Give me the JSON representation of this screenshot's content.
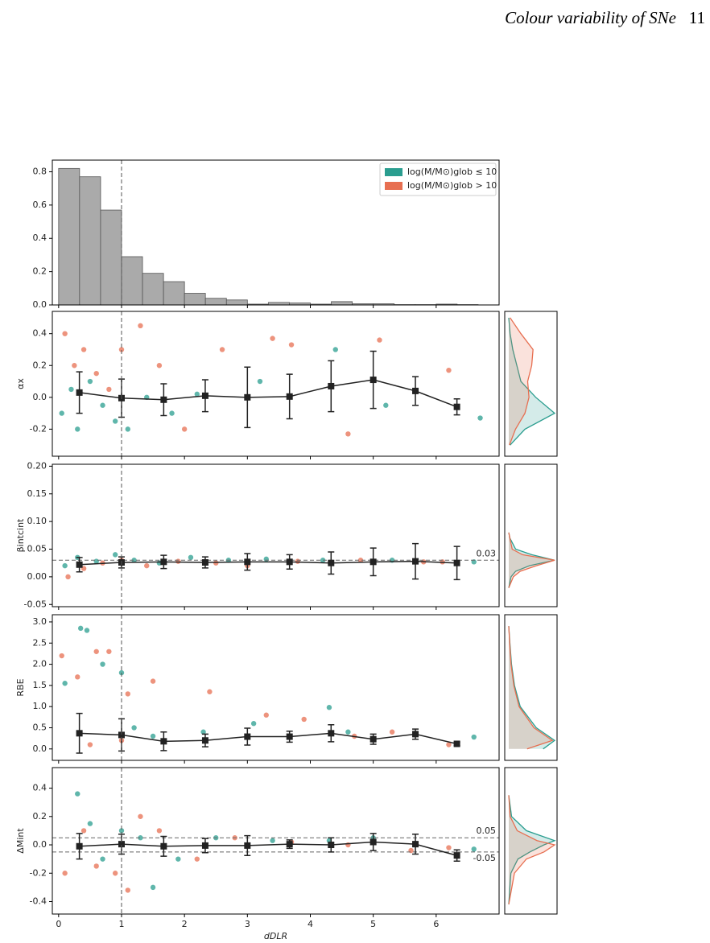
{
  "header": {
    "title": "Colour variability of SNe",
    "page": "11"
  },
  "chart_data": [
    {
      "type": "histogram",
      "xlim": [
        -0.1,
        7.0
      ],
      "ylim": [
        0,
        0.87
      ],
      "yticks": [
        {
          "value": 0,
          "label": "0.0"
        },
        0.2,
        0.4,
        0.6,
        0.8
      ],
      "bins": [
        0,
        0.333,
        0.667,
        1,
        1.333,
        1.667,
        2,
        2.333,
        2.667,
        3,
        3.333,
        3.667,
        4,
        4.333,
        4.667,
        5,
        5.333,
        5.667,
        6,
        6.333,
        6.667
      ],
      "values": [
        0.82,
        0.77,
        0.57,
        0.29,
        0.19,
        0.14,
        0.07,
        0.04,
        0.03,
        0.005,
        0.015,
        0.012,
        0.005,
        0.02,
        0.007,
        0.007,
        0.002,
        0.002,
        0.005,
        0.002
      ],
      "color": "#aaaaaa",
      "vline": 1,
      "legend": [
        {
          "label": "log(M/M⊙)glob ≤ 10",
          "color": "#2a9d8f"
        },
        {
          "label": "log(M/M⊙)glob > 10",
          "color": "#e76f51"
        }
      ]
    },
    {
      "type": "scatter",
      "ylabel": "αx",
      "xlim": [
        -0.1,
        7.0
      ],
      "ylim": [
        -0.37,
        0.54
      ],
      "yticks": [
        -0.2,
        {
          "value": 0,
          "label": "0.0"
        },
        0.2,
        0.4
      ],
      "vline": 1,
      "points": [
        {
          "color": "#2a9d8f",
          "x": [
            0.05,
            0.2,
            0.3,
            0.5,
            0.7,
            0.9,
            1.1,
            1.4,
            1.8,
            2.2,
            3.2,
            4.4,
            5.2,
            6.7
          ],
          "values": [
            -0.1,
            0.05,
            -0.2,
            0.1,
            -0.05,
            -0.15,
            -0.2,
            0.0,
            -0.1,
            0.02,
            0.1,
            0.3,
            -0.05,
            -0.13
          ]
        },
        {
          "color": "#e76f51",
          "x": [
            0.1,
            0.25,
            0.4,
            0.6,
            0.8,
            1.0,
            1.3,
            1.6,
            2.0,
            2.6,
            3.4,
            3.7,
            4.6,
            5.1,
            6.2
          ],
          "values": [
            0.4,
            0.2,
            0.3,
            0.15,
            0.05,
            0.3,
            0.45,
            0.2,
            -0.2,
            0.3,
            0.37,
            0.33,
            -0.23,
            0.36,
            0.17
          ]
        }
      ],
      "mean": {
        "color": "#222222",
        "x": [
          0.33,
          1,
          1.67,
          2.33,
          3,
          3.67,
          4.33,
          5,
          5.67,
          6.33
        ],
        "values": [
          0.03,
          -0.005,
          -0.015,
          0.01,
          0.0,
          0.005,
          0.07,
          0.11,
          0.04,
          -0.06
        ],
        "errors": [
          0.13,
          0.12,
          0.1,
          0.1,
          0.19,
          0.14,
          0.16,
          0.18,
          0.09,
          0.05
        ]
      },
      "kde": [
        {
          "color": "#2a9d8f",
          "y": [
            -0.3,
            -0.2,
            -0.1,
            0,
            0.1,
            0.2,
            0.3,
            0.4,
            0.5
          ],
          "density": [
            0.1,
            1.2,
            3.4,
            2.0,
            0.9,
            0.6,
            0.3,
            0.1,
            0.0
          ]
        },
        {
          "color": "#e76f51",
          "y": [
            -0.3,
            -0.2,
            -0.1,
            0,
            0.1,
            0.2,
            0.3,
            0.4,
            0.5
          ],
          "density": [
            0.05,
            0.5,
            1.2,
            1.5,
            1.4,
            1.7,
            1.8,
            0.9,
            0.1
          ]
        }
      ]
    },
    {
      "type": "scatter",
      "ylabel": "βintcint",
      "xlim": [
        -0.1,
        7.0
      ],
      "ylim": [
        -0.054,
        0.2035
      ],
      "yticks": [
        -0.05,
        {
          "value": 0,
          "label": "0.00"
        },
        0.05,
        {
          "value": 0.1,
          "label": "0.10"
        },
        0.15,
        {
          "value": 0.2,
          "label": "0.20"
        }
      ],
      "vline": 1,
      "hlines": [
        {
          "value": 0.03,
          "label": "0.03"
        }
      ],
      "points": [
        {
          "color": "#2a9d8f",
          "x": [
            0.1,
            0.3,
            0.6,
            0.9,
            1.2,
            1.6,
            2.1,
            2.7,
            3.3,
            4.2,
            5.3,
            6.6
          ],
          "values": [
            0.02,
            0.035,
            0.028,
            0.04,
            0.03,
            0.025,
            0.035,
            0.03,
            0.032,
            0.03,
            0.03,
            0.027
          ]
        },
        {
          "color": "#e76f51",
          "x": [
            0.15,
            0.4,
            0.7,
            1.0,
            1.4,
            1.9,
            2.5,
            3.0,
            3.8,
            4.8,
            5.8,
            6.1
          ],
          "values": [
            0.0,
            0.015,
            0.025,
            0.03,
            0.02,
            0.028,
            0.025,
            0.02,
            0.028,
            0.03,
            0.027,
            0.027
          ]
        }
      ],
      "mean": {
        "color": "#222222",
        "x": [
          0.33,
          1,
          1.67,
          2.33,
          3,
          3.67,
          4.33,
          5,
          5.67,
          6.33
        ],
        "values": [
          0.022,
          0.026,
          0.027,
          0.026,
          0.027,
          0.027,
          0.025,
          0.027,
          0.028,
          0.025
        ],
        "errors": [
          0.013,
          0.01,
          0.012,
          0.01,
          0.015,
          0.013,
          0.02,
          0.025,
          0.032,
          0.03
        ]
      },
      "kde": [
        {
          "color": "#2a9d8f",
          "y": [
            -0.02,
            0,
            0.01,
            0.02,
            0.03,
            0.04,
            0.05,
            0.07,
            0.08
          ],
          "density": [
            0,
            2,
            6,
            18,
            40,
            20,
            6,
            1,
            0
          ]
        },
        {
          "color": "#e76f51",
          "y": [
            -0.02,
            0,
            0.01,
            0.02,
            0.03,
            0.04,
            0.05,
            0.07,
            0.08
          ],
          "density": [
            0,
            4,
            10,
            24,
            40,
            12,
            3,
            1,
            0
          ]
        }
      ]
    },
    {
      "type": "scatter",
      "ylabel": "RBE",
      "xlim": [
        -0.1,
        7.0
      ],
      "ylim": [
        -0.27,
        3.17
      ],
      "yticks": [
        {
          "value": 0,
          "label": "0.0"
        },
        0.5,
        {
          "value": 1,
          "label": "1.0"
        },
        1.5,
        {
          "value": 2,
          "label": "2.0"
        },
        2.5,
        {
          "value": 3,
          "label": "3.0"
        }
      ],
      "vline": 1,
      "points": [
        {
          "color": "#2a9d8f",
          "x": [
            0.1,
            0.35,
            0.45,
            0.7,
            1.0,
            1.2,
            1.5,
            2.3,
            3.1,
            4.3,
            4.6,
            6.6
          ],
          "values": [
            1.55,
            2.85,
            2.8,
            2.0,
            1.8,
            0.5,
            0.3,
            0.4,
            0.6,
            0.98,
            0.4,
            0.28
          ]
        },
        {
          "color": "#e76f51",
          "x": [
            0.05,
            0.3,
            0.6,
            0.8,
            1.1,
            1.5,
            2.4,
            3.3,
            3.9,
            4.7,
            5.3,
            6.2,
            1.0,
            0.5
          ],
          "values": [
            2.2,
            1.7,
            2.3,
            2.3,
            1.3,
            1.6,
            1.35,
            0.8,
            0.7,
            0.3,
            0.4,
            0.1,
            0.2,
            0.1
          ]
        }
      ],
      "mean": {
        "color": "#222222",
        "x": [
          0.33,
          1,
          1.67,
          2.33,
          3,
          3.67,
          4.33,
          5,
          5.67,
          6.33
        ],
        "values": [
          0.37,
          0.33,
          0.18,
          0.2,
          0.29,
          0.29,
          0.37,
          0.23,
          0.35,
          0.12
        ],
        "errors": [
          0.47,
          0.38,
          0.22,
          0.15,
          0.2,
          0.13,
          0.2,
          0.12,
          0.12,
          0.04
        ]
      },
      "kde": [
        {
          "color": "#2a9d8f",
          "y": [
            0,
            0.2,
            0.5,
            1,
            1.5,
            2,
            2.5,
            2.9
          ],
          "density": [
            1.5,
            2.0,
            1.2,
            0.5,
            0.25,
            0.12,
            0.05,
            0
          ]
        },
        {
          "color": "#e76f51",
          "y": [
            0,
            0.2,
            0.5,
            1,
            1.5,
            2,
            2.5,
            2.9
          ],
          "density": [
            0.8,
            1.9,
            1.1,
            0.45,
            0.22,
            0.1,
            0.04,
            0
          ]
        }
      ]
    },
    {
      "type": "scatter",
      "ylabel": "ΔMint",
      "xlabel": "dDLR",
      "xlim": [
        -0.1,
        7.0
      ],
      "ylim": [
        -0.488,
        0.545
      ],
      "xticks": [
        0,
        1,
        2,
        3,
        4,
        5,
        6
      ],
      "yticks": [
        -0.4,
        -0.2,
        {
          "value": 0,
          "label": "0.0"
        },
        0.2,
        0.4
      ],
      "vline": 1,
      "hlines": [
        {
          "value": 0.05,
          "label": "0.05"
        },
        {
          "value": -0.05,
          "label": "-0.05"
        }
      ],
      "points": [
        {
          "color": "#2a9d8f",
          "x": [
            0.3,
            0.5,
            0.7,
            1.0,
            1.3,
            1.5,
            1.9,
            2.5,
            3.4,
            4.3,
            5.0,
            6.6
          ],
          "values": [
            0.36,
            0.15,
            -0.1,
            0.1,
            0.05,
            -0.3,
            -0.1,
            0.05,
            0.03,
            0.03,
            0.05,
            -0.03
          ]
        },
        {
          "color": "#e76f51",
          "x": [
            0.1,
            0.4,
            0.6,
            0.9,
            1.1,
            1.6,
            2.2,
            2.8,
            3.7,
            4.6,
            5.6,
            6.2,
            1.3
          ],
          "values": [
            -0.2,
            0.1,
            -0.15,
            -0.2,
            -0.32,
            0.1,
            -0.1,
            0.05,
            0.02,
            0.0,
            -0.04,
            -0.02,
            0.2
          ]
        }
      ],
      "mean": {
        "color": "#222222",
        "x": [
          0.33,
          1,
          1.67,
          2.33,
          3,
          3.67,
          4.33,
          5,
          5.67,
          6.33
        ],
        "values": [
          -0.01,
          0.005,
          -0.01,
          -0.005,
          -0.005,
          0.005,
          0.0,
          0.02,
          0.005,
          -0.075
        ],
        "errors": [
          0.09,
          0.07,
          0.07,
          0.05,
          0.07,
          0.03,
          0.05,
          0.06,
          0.07,
          0.04
        ]
      },
      "kde": [
        {
          "color": "#2a9d8f",
          "y": [
            -0.42,
            -0.2,
            -0.1,
            -0.05,
            0,
            0.03,
            0.1,
            0.2,
            0.35
          ],
          "density": [
            0,
            0.3,
            1.3,
            3,
            5,
            6.5,
            2.5,
            0.4,
            0
          ]
        },
        {
          "color": "#e76f51",
          "y": [
            -0.42,
            -0.2,
            -0.1,
            -0.05,
            0,
            0.03,
            0.1,
            0.2,
            0.35
          ],
          "density": [
            0,
            0.8,
            2.5,
            5,
            6.5,
            4,
            1.2,
            0.2,
            0
          ]
        }
      ]
    }
  ]
}
